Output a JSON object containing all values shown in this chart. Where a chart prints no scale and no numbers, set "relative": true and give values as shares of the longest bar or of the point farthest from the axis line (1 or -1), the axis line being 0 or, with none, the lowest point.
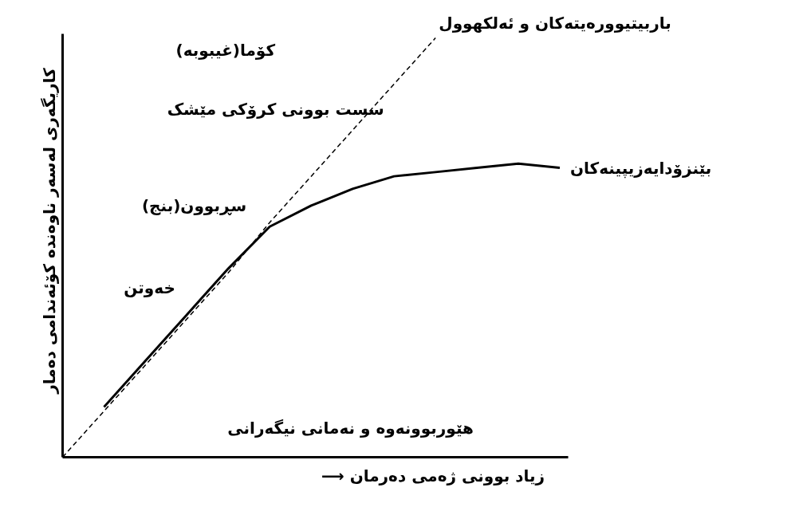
{
  "chart_data": {
    "type": "line",
    "relative": true,
    "xlabel": "⟶ زیاد بوونی ژەمی دەرمان",
    "ylabel": "کاریگەری لەسەر ناوەندە کۆئەندامی دەمار",
    "categories": [
      null,
      null,
      null,
      null,
      null,
      null,
      null,
      null,
      null,
      null,
      null,
      null,
      null
    ],
    "series": [
      {
        "name": "باربیتیوورەیتەکان و ئەلکهوول",
        "color": "#000000",
        "line_style": "dashed",
        "values": [
          0,
          0.11,
          0.22,
          0.33,
          0.44,
          0.56,
          0.67,
          0.78,
          0.89,
          1.0,
          null,
          null,
          null
        ]
      },
      {
        "name": "بێنزۆدایەزیپینەکان",
        "color": "#000000",
        "line_style": "solid",
        "values": [
          null,
          0.12,
          0.23,
          0.34,
          0.45,
          0.55,
          0.6,
          0.64,
          0.67,
          0.68,
          0.69,
          0.7,
          0.69
        ]
      }
    ],
    "annotations": [
      "کۆما(غیبوبە)",
      "سست بوونی کرۆکی مێشک",
      "سڕبوون(بنج)",
      "خەوتن",
      "هێوربوونەوە و نەمانی نیگەرانی"
    ],
    "grid": false,
    "marker": "none"
  }
}
